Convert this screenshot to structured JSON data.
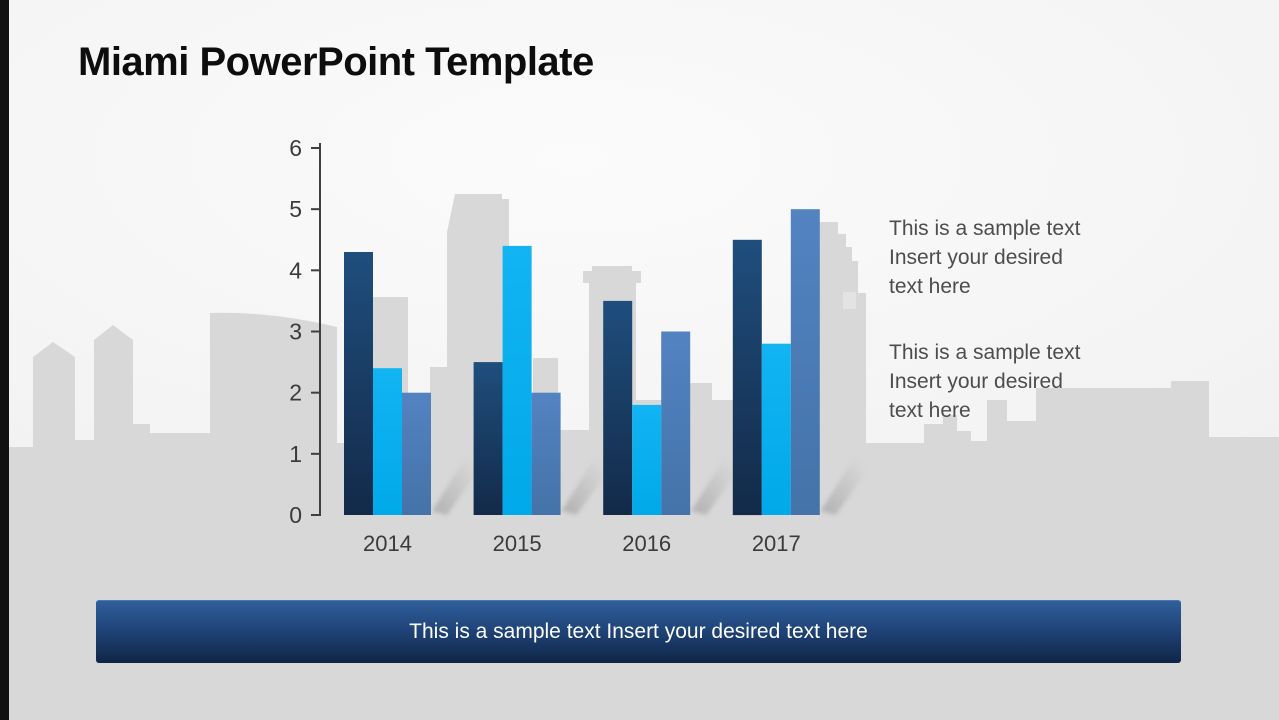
{
  "slide": {
    "title": "Miami PowerPoint Template",
    "sample_text_blocks": [
      {
        "lines": [
          "This is a sample text",
          "Insert your desired",
          "text here"
        ]
      },
      {
        "lines": [
          "This is a sample text",
          "Insert your desired",
          "text here"
        ]
      }
    ],
    "banner": {
      "text": "This is a sample text Insert your desired text here"
    }
  },
  "colors": {
    "bar_dark_blue_top": "#1f4e7d",
    "bar_dark_blue_bottom": "#132a49",
    "bar_light_blue_top": "#12b4f2",
    "bar_light_blue_bottom": "#00a9e9",
    "bar_steel_blue_top": "#5383c1",
    "bar_steel_blue_bottom": "#4473a9",
    "banner_gradient_top": "#305f9a",
    "banner_gradient_mid": "#20457a",
    "banner_gradient_bottom": "#0f2546",
    "banner_text": "#ffffff",
    "skyline": "#d8d8d8",
    "axis": "#3f3f3f",
    "tick_label": "#3b3b3b",
    "body_text": "#4d4d4d",
    "title_text": "#0d0d0d",
    "left_edge_bar": "#111111"
  },
  "chart_data": {
    "type": "bar",
    "title": "",
    "xlabel": "",
    "ylabel": "",
    "categories": [
      "2014",
      "2015",
      "2016",
      "2017"
    ],
    "series": [
      {
        "name": "dark-blue",
        "values": [
          4.3,
          2.5,
          3.5,
          4.5
        ]
      },
      {
        "name": "light-blue",
        "values": [
          2.4,
          4.4,
          1.8,
          2.8
        ]
      },
      {
        "name": "steel-blue",
        "values": [
          2.0,
          2.0,
          3.0,
          5.0
        ]
      }
    ],
    "ylim": [
      0,
      6
    ],
    "yticks": [
      0,
      1,
      2,
      3,
      4,
      5,
      6
    ],
    "grid": false,
    "legend": "none"
  }
}
